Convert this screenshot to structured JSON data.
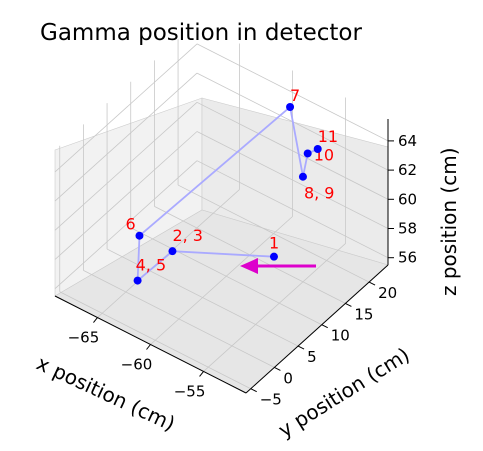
{
  "title": "Gamma position in detector",
  "chart_data": {
    "type": "scatter",
    "subtype": "3d-line-scatter",
    "title": "Gamma position in detector",
    "xlabel": "x position (cm)",
    "ylabel": "y position (cm)",
    "zlabel": "z position (cm)",
    "xticks": [
      -65,
      -60,
      -55
    ],
    "yticks": [
      -5,
      0,
      5,
      10,
      15,
      20
    ],
    "zticks": [
      56,
      58,
      60,
      62,
      64
    ],
    "xlim": [
      -69,
      -51
    ],
    "ylim": [
      -6,
      24
    ],
    "zlim": [
      55.5,
      65.5
    ],
    "grid": true,
    "series": [
      {
        "marker_color": "#0000ff",
        "line_color": "#aaaaff",
        "points": [
          {
            "label": "1",
            "x": -55.5,
            "y": 10.0,
            "z": 58.5
          },
          {
            "label": "2, 3",
            "x": -61.5,
            "y": 2.0,
            "z": 59.0
          },
          {
            "label": "4, 5",
            "x": -63.0,
            "y": -2.0,
            "z": 57.6
          },
          {
            "label": "6",
            "x": -65.5,
            "y": 4.0,
            "z": 58.0
          },
          {
            "label": "7",
            "x": -58.0,
            "y": 19.0,
            "z": 65.2
          },
          {
            "label": "8, 9",
            "x": -55.0,
            "y": 15.0,
            "z": 62.7
          },
          {
            "label": "10",
            "x": -55.0,
            "y": 16.0,
            "z": 64.0
          },
          {
            "label": "11",
            "x": -54.5,
            "y": 17.0,
            "z": 64.2
          }
        ]
      }
    ],
    "annotations": [
      {
        "type": "arrow",
        "color": "#dd00cc",
        "points_to": "1"
      }
    ]
  }
}
